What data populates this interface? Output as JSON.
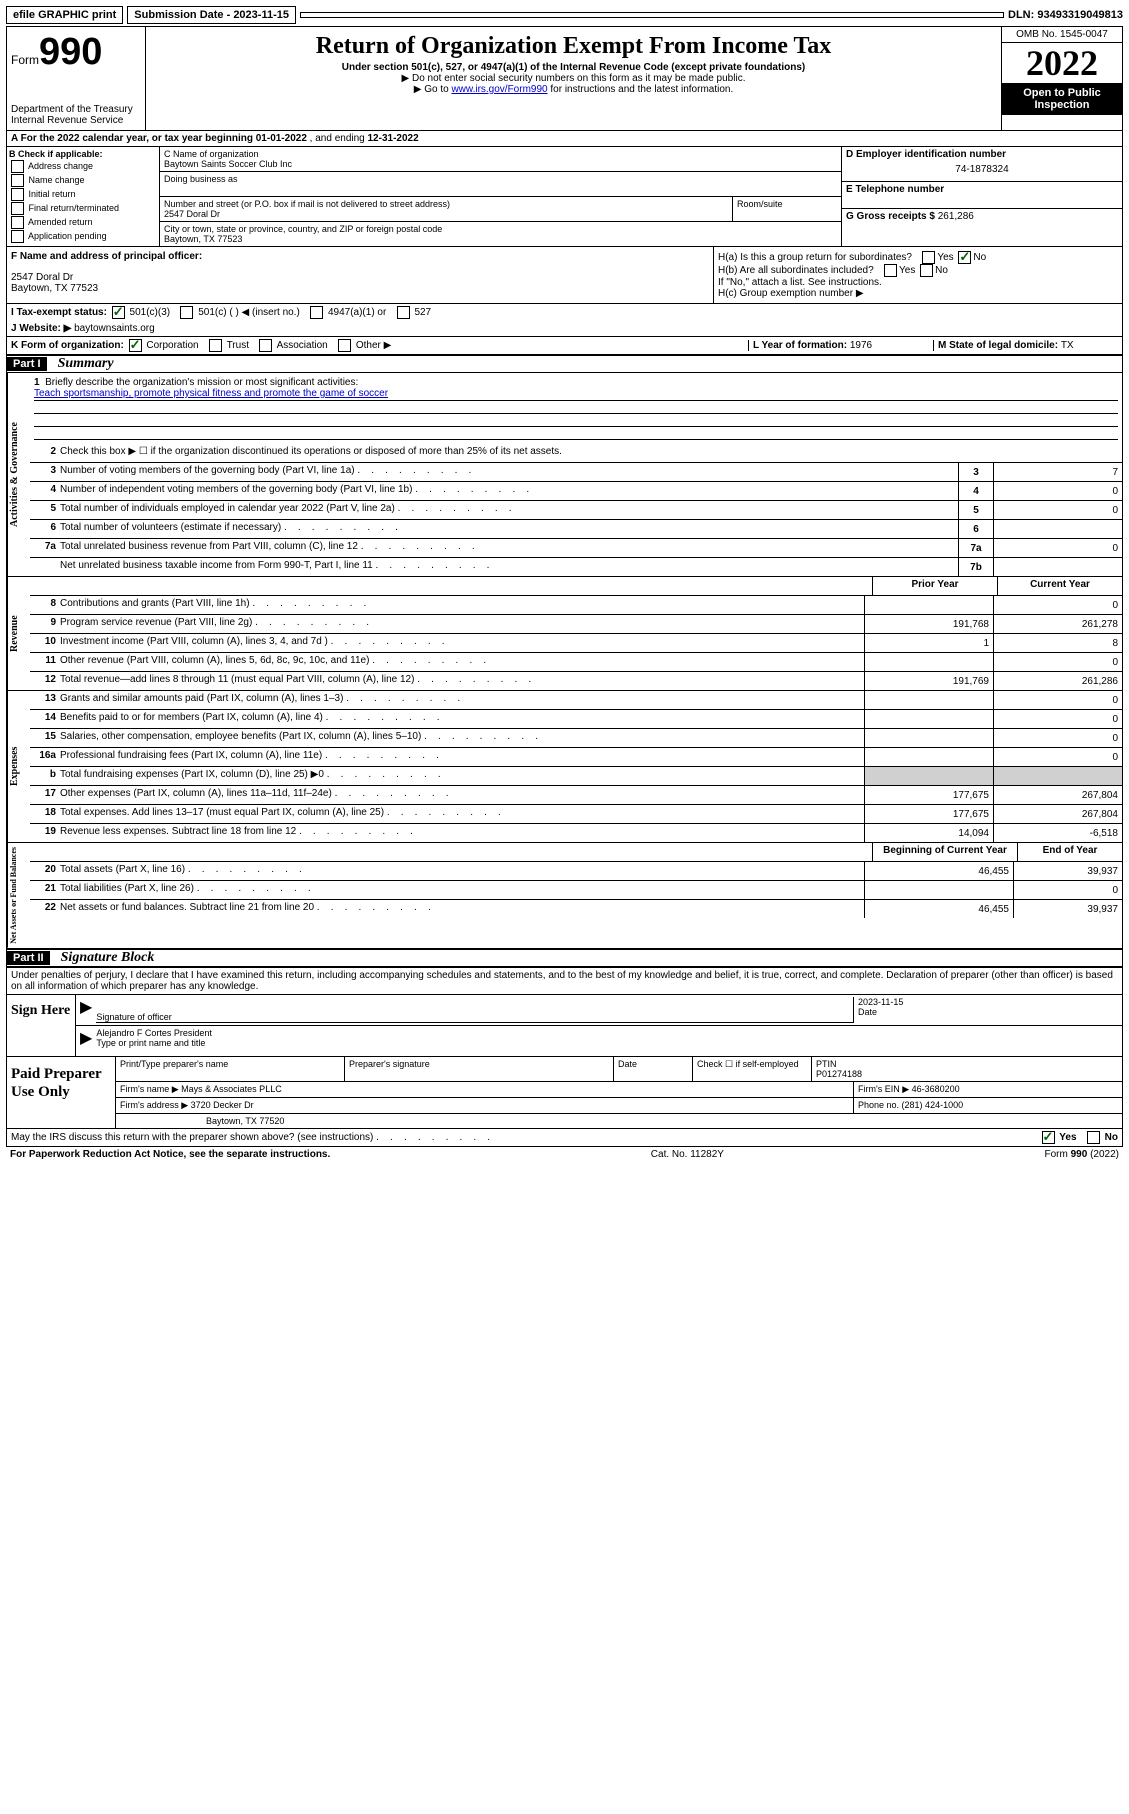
{
  "topbar": {
    "efile": "efile GRAPHIC print",
    "submission_label": "Submission Date - 2023-11-15",
    "dln": "DLN: 93493319049813"
  },
  "header": {
    "form_prefix": "Form",
    "form_num": "990",
    "title": "Return of Organization Exempt From Income Tax",
    "subtitle": "Under section 501(c), 527, or 4947(a)(1) of the Internal Revenue Code (except private foundations)",
    "note1": "▶ Do not enter social security numbers on this form as it may be made public.",
    "note2_prefix": "▶ Go to ",
    "note2_link": "www.irs.gov/Form990",
    "note2_suffix": " for instructions and the latest information.",
    "dept": "Department of the Treasury",
    "irs": "Internal Revenue Service",
    "omb": "OMB No. 1545-0047",
    "year": "2022",
    "open": "Open to Public Inspection"
  },
  "section_a": {
    "prefix": "A For the 2022 calendar year, or tax year beginning ",
    "begin": "01-01-2022",
    "mid": " , and ending ",
    "end": "12-31-2022"
  },
  "section_b": {
    "label": "B Check if applicable:",
    "opts": [
      "Address change",
      "Name change",
      "Initial return",
      "Final return/terminated",
      "Amended return",
      "Application pending"
    ]
  },
  "section_c": {
    "name_label": "C Name of organization",
    "name": "Baytown Saints Soccer Club Inc",
    "dba_label": "Doing business as",
    "addr_label": "Number and street (or P.O. box if mail is not delivered to street address)",
    "addr": "2547 Doral Dr",
    "room_label": "Room/suite",
    "city_label": "City or town, state or province, country, and ZIP or foreign postal code",
    "city": "Baytown, TX  77523"
  },
  "section_d": {
    "label": "D Employer identification number",
    "value": "74-1878324"
  },
  "section_e": {
    "label": "E Telephone number"
  },
  "section_g": {
    "label": "G Gross receipts $ ",
    "value": "261,286"
  },
  "section_f": {
    "label": "F  Name and address of principal officer:",
    "addr1": "2547 Doral Dr",
    "addr2": "Baytown, TX  77523"
  },
  "section_h": {
    "ha": "H(a)  Is this a group return for subordinates?",
    "hb": "H(b)  Are all subordinates included?",
    "hb_note": "If \"No,\" attach a list. See instructions.",
    "hc": "H(c)  Group exemption number ▶"
  },
  "section_i": {
    "label": "I    Tax-exempt status:",
    "opts": [
      "501(c)(3)",
      "501(c) (  ) ◀ (insert no.)",
      "4947(a)(1) or",
      "527"
    ]
  },
  "section_j": {
    "label": "J    Website: ▶ ",
    "value": "baytownsaints.org"
  },
  "section_k": {
    "label": "K Form of organization:",
    "opts": [
      "Corporation",
      "Trust",
      "Association",
      "Other ▶"
    ]
  },
  "section_l": {
    "label": "L Year of formation: ",
    "value": "1976"
  },
  "section_m": {
    "label": "M State of legal domicile: ",
    "value": "TX"
  },
  "part1": {
    "header": "Part I",
    "title": "Summary"
  },
  "governance": {
    "side": "Activities & Governance",
    "line1_label": "Briefly describe the organization's mission or most significant activities:",
    "line1_text": "Teach sportsmanship, promote physical fitness and promote the game of soccer",
    "line2": "Check this box ▶ ☐  if the organization discontinued its operations or disposed of more than 25% of its net assets.",
    "rows": [
      {
        "n": "3",
        "t": "Number of voting members of the governing body (Part VI, line 1a)",
        "box": "3",
        "v": "7"
      },
      {
        "n": "4",
        "t": "Number of independent voting members of the governing body (Part VI, line 1b)",
        "box": "4",
        "v": "0"
      },
      {
        "n": "5",
        "t": "Total number of individuals employed in calendar year 2022 (Part V, line 2a)",
        "box": "5",
        "v": "0"
      },
      {
        "n": "6",
        "t": "Total number of volunteers (estimate if necessary)",
        "box": "6",
        "v": ""
      },
      {
        "n": "7a",
        "t": "Total unrelated business revenue from Part VIII, column (C), line 12",
        "box": "7a",
        "v": "0"
      },
      {
        "n": "",
        "t": "Net unrelated business taxable income from Form 990-T, Part I, line 11",
        "box": "7b",
        "v": ""
      }
    ]
  },
  "revenue": {
    "side": "Revenue",
    "header_prior": "Prior Year",
    "header_current": "Current Year",
    "rows": [
      {
        "n": "8",
        "t": "Contributions and grants (Part VIII, line 1h)",
        "p": "",
        "c": "0"
      },
      {
        "n": "9",
        "t": "Program service revenue (Part VIII, line 2g)",
        "p": "191,768",
        "c": "261,278"
      },
      {
        "n": "10",
        "t": "Investment income (Part VIII, column (A), lines 3, 4, and 7d )",
        "p": "1",
        "c": "8"
      },
      {
        "n": "11",
        "t": "Other revenue (Part VIII, column (A), lines 5, 6d, 8c, 9c, 10c, and 11e)",
        "p": "",
        "c": "0"
      },
      {
        "n": "12",
        "t": "Total revenue—add lines 8 through 11 (must equal Part VIII, column (A), line 12)",
        "p": "191,769",
        "c": "261,286"
      }
    ]
  },
  "expenses": {
    "side": "Expenses",
    "rows": [
      {
        "n": "13",
        "t": "Grants and similar amounts paid (Part IX, column (A), lines 1–3)",
        "p": "",
        "c": "0"
      },
      {
        "n": "14",
        "t": "Benefits paid to or for members (Part IX, column (A), line 4)",
        "p": "",
        "c": "0"
      },
      {
        "n": "15",
        "t": "Salaries, other compensation, employee benefits (Part IX, column (A), lines 5–10)",
        "p": "",
        "c": "0"
      },
      {
        "n": "16a",
        "t": "Professional fundraising fees (Part IX, column (A), line 11e)",
        "p": "",
        "c": "0"
      },
      {
        "n": "b",
        "t": "Total fundraising expenses (Part IX, column (D), line 25) ▶0",
        "p": "shaded",
        "c": "shaded"
      },
      {
        "n": "17",
        "t": "Other expenses (Part IX, column (A), lines 11a–11d, 11f–24e)",
        "p": "177,675",
        "c": "267,804"
      },
      {
        "n": "18",
        "t": "Total expenses. Add lines 13–17 (must equal Part IX, column (A), line 25)",
        "p": "177,675",
        "c": "267,804"
      },
      {
        "n": "19",
        "t": "Revenue less expenses. Subtract line 18 from line 12",
        "p": "14,094",
        "c": "-6,518"
      }
    ]
  },
  "balances": {
    "side": "Net Assets or Fund Balances",
    "header_begin": "Beginning of Current Year",
    "header_end": "End of Year",
    "rows": [
      {
        "n": "20",
        "t": "Total assets (Part X, line 16)",
        "p": "46,455",
        "c": "39,937"
      },
      {
        "n": "21",
        "t": "Total liabilities (Part X, line 26)",
        "p": "",
        "c": "0"
      },
      {
        "n": "22",
        "t": "Net assets or fund balances. Subtract line 21 from line 20",
        "p": "46,455",
        "c": "39,937"
      }
    ]
  },
  "part2": {
    "header": "Part II",
    "title": "Signature Block",
    "perjury": "Under penalties of perjury, I declare that I have examined this return, including accompanying schedules and statements, and to the best of my knowledge and belief, it is true, correct, and complete. Declaration of preparer (other than officer) is based on all information of which preparer has any knowledge."
  },
  "sign": {
    "label": "Sign Here",
    "sig_officer": "Signature of officer",
    "date_label": "Date",
    "date": "2023-11-15",
    "name": "Alejandro F Cortes President",
    "name_label": "Type or print name and title"
  },
  "preparer": {
    "label": "Paid Preparer Use Only",
    "col1": "Print/Type preparer's name",
    "col2": "Preparer's signature",
    "col3": "Date",
    "col4_check": "Check ☐ if self-employed",
    "col5_label": "PTIN",
    "col5": "P01274188",
    "firm_name_label": "Firm's name    ▶ ",
    "firm_name": "Mays & Associates PLLC",
    "firm_ein_label": "Firm's EIN ▶ ",
    "firm_ein": "46-3680200",
    "firm_addr_label": "Firm's address ▶ ",
    "firm_addr1": "3720 Decker Dr",
    "firm_addr2": "Baytown, TX  77520",
    "phone_label": "Phone no. ",
    "phone": "(281) 424-1000"
  },
  "discuss": {
    "text": "May the IRS discuss this return with the preparer shown above? (see instructions)",
    "yes": "Yes",
    "no": "No"
  },
  "footer": {
    "left": "For Paperwork Reduction Act Notice, see the separate instructions.",
    "center": "Cat. No. 11282Y",
    "right": "Form 990 (2022)"
  }
}
